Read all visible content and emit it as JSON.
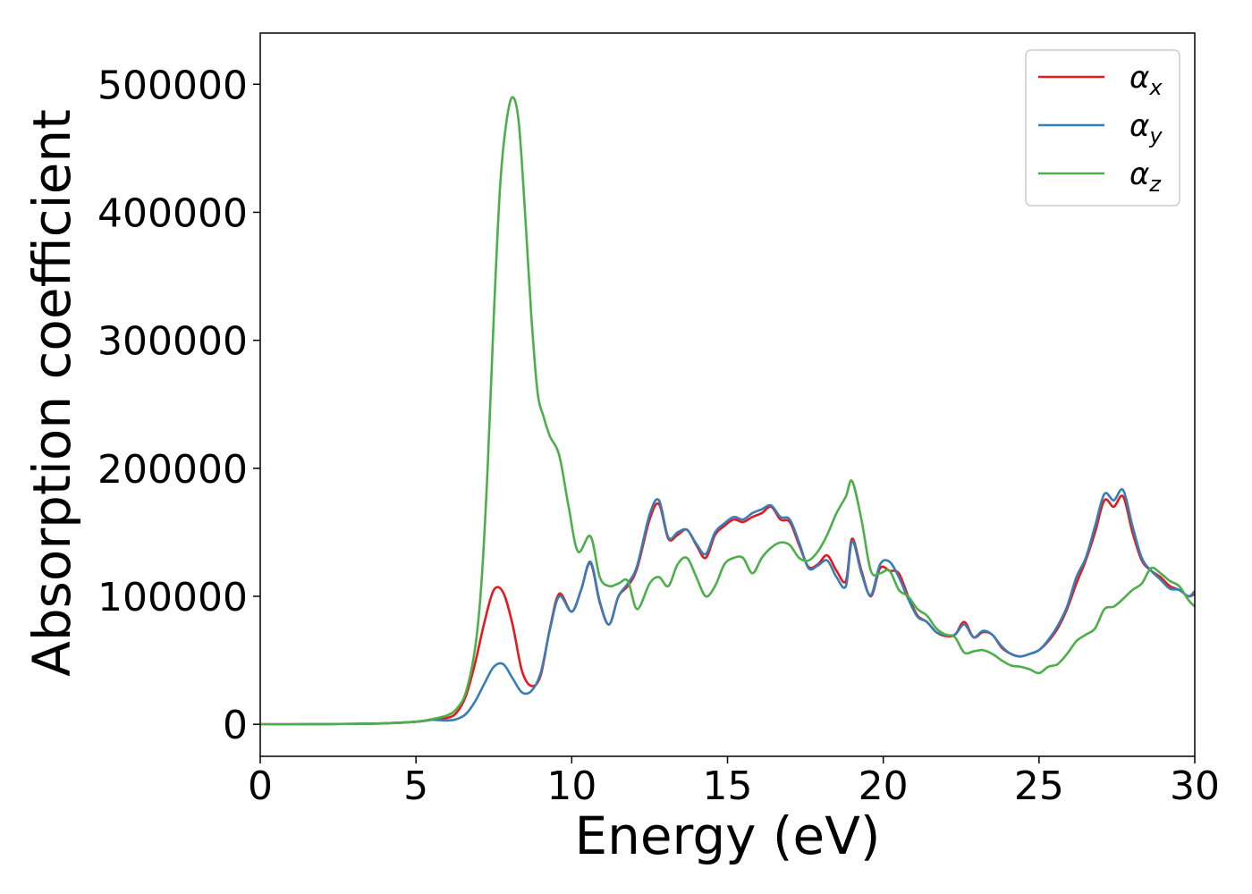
{
  "chart_data": {
    "type": "line",
    "xlabel": "Energy (eV)",
    "ylabel": "Absorption coefficient",
    "xlim": [
      0,
      30
    ],
    "ylim": [
      -25000,
      540000
    ],
    "xticks": [
      0,
      5,
      10,
      15,
      20,
      25,
      30
    ],
    "yticks": [
      0,
      100000,
      200000,
      300000,
      400000,
      500000
    ],
    "grid": false,
    "legend_position": "top-right",
    "series": [
      {
        "name": "α",
        "subscript": "x",
        "color": "#e41a1c",
        "x": [
          0,
          1,
          2,
          3,
          4,
          5,
          5.5,
          6,
          6.3,
          6.6,
          6.9,
          7.2,
          7.5,
          7.8,
          8.1,
          8.4,
          8.7,
          9.0,
          9.3,
          9.6,
          10.0,
          10.3,
          10.6,
          10.9,
          11.2,
          11.5,
          11.8,
          12.1,
          12.5,
          12.8,
          13.1,
          13.4,
          13.7,
          14.0,
          14.3,
          14.6,
          14.9,
          15.2,
          15.5,
          15.8,
          16.1,
          16.4,
          16.7,
          17.0,
          17.3,
          17.6,
          17.9,
          18.2,
          18.5,
          18.8,
          19.0,
          19.3,
          19.6,
          19.9,
          20.2,
          20.5,
          20.8,
          21.1,
          21.4,
          21.7,
          22.0,
          22.3,
          22.6,
          22.9,
          23.2,
          23.5,
          23.8,
          24.1,
          24.4,
          24.7,
          25.0,
          25.3,
          25.6,
          25.9,
          26.2,
          26.5,
          26.8,
          27.1,
          27.4,
          27.7,
          28.0,
          28.3,
          28.6,
          28.9,
          29.2,
          29.5,
          29.8,
          30.0
        ],
        "y": [
          0,
          0,
          200,
          400,
          800,
          2000,
          3500,
          5000,
          9000,
          22000,
          48000,
          80000,
          105000,
          103000,
          78000,
          42000,
          30000,
          38000,
          75000,
          102000,
          88000,
          105000,
          126000,
          95000,
          78000,
          100000,
          108000,
          122000,
          160000,
          172000,
          145000,
          148000,
          152000,
          140000,
          130000,
          148000,
          155000,
          160000,
          158000,
          162000,
          165000,
          170000,
          160000,
          158000,
          140000,
          123000,
          125000,
          132000,
          120000,
          112000,
          145000,
          120000,
          100000,
          122000,
          120000,
          118000,
          100000,
          85000,
          80000,
          72000,
          69000,
          70000,
          80000,
          68000,
          72000,
          70000,
          60000,
          55000,
          53000,
          55000,
          58000,
          65000,
          75000,
          90000,
          110000,
          128000,
          150000,
          175000,
          170000,
          178000,
          150000,
          128000,
          120000,
          115000,
          108000,
          105000,
          100000,
          102000
        ]
      },
      {
        "name": "α",
        "subscript": "y",
        "color": "#377eb8",
        "x": [
          0,
          1,
          2,
          3,
          4,
          5,
          5.5,
          6,
          6.3,
          6.6,
          6.9,
          7.2,
          7.5,
          7.8,
          8.1,
          8.4,
          8.7,
          9.0,
          9.3,
          9.6,
          10.0,
          10.3,
          10.6,
          10.9,
          11.2,
          11.5,
          11.8,
          12.1,
          12.5,
          12.8,
          13.1,
          13.4,
          13.7,
          14.0,
          14.3,
          14.6,
          14.9,
          15.2,
          15.5,
          15.8,
          16.1,
          16.4,
          16.7,
          17.0,
          17.3,
          17.6,
          17.9,
          18.2,
          18.5,
          18.8,
          19.0,
          19.3,
          19.6,
          19.9,
          20.2,
          20.5,
          20.8,
          21.1,
          21.4,
          21.7,
          22.0,
          22.3,
          22.6,
          22.9,
          23.2,
          23.5,
          23.8,
          24.1,
          24.4,
          24.7,
          25.0,
          25.3,
          25.6,
          25.9,
          26.2,
          26.5,
          26.8,
          27.1,
          27.4,
          27.7,
          28.0,
          28.3,
          28.6,
          28.9,
          29.2,
          29.5,
          29.8,
          30.0
        ],
        "y": [
          0,
          0,
          200,
          400,
          800,
          2000,
          3500,
          3000,
          4000,
          8000,
          18000,
          32000,
          45000,
          47000,
          36000,
          25000,
          26000,
          40000,
          74000,
          100000,
          88000,
          105000,
          127000,
          96000,
          78000,
          100000,
          110000,
          124000,
          164000,
          175000,
          146000,
          150000,
          152000,
          141000,
          133000,
          150000,
          157000,
          162000,
          160000,
          165000,
          168000,
          171000,
          162000,
          160000,
          142000,
          122000,
          124000,
          128000,
          115000,
          108000,
          143000,
          118000,
          101000,
          125000,
          127000,
          115000,
          98000,
          84000,
          80000,
          72000,
          70000,
          70000,
          78000,
          68000,
          73000,
          70000,
          61000,
          55000,
          53000,
          55000,
          58000,
          66000,
          77000,
          92000,
          115000,
          130000,
          155000,
          180000,
          175000,
          183000,
          155000,
          130000,
          120000,
          113000,
          106000,
          105000,
          100000,
          104000
        ]
      },
      {
        "name": "α",
        "subscript": "z",
        "color": "#4daf4a",
        "x": [
          0,
          1,
          2,
          3,
          4,
          5,
          5.5,
          6,
          6.3,
          6.6,
          6.9,
          7.1,
          7.3,
          7.5,
          7.7,
          7.9,
          8.1,
          8.3,
          8.5,
          8.7,
          8.9,
          9.1,
          9.3,
          9.6,
          9.9,
          10.2,
          10.6,
          10.9,
          11.2,
          11.5,
          11.8,
          12.1,
          12.5,
          12.8,
          13.1,
          13.4,
          13.7,
          14.0,
          14.3,
          14.6,
          14.9,
          15.2,
          15.5,
          15.8,
          16.1,
          16.4,
          16.7,
          17.0,
          17.3,
          17.6,
          17.9,
          18.2,
          18.5,
          18.8,
          19.0,
          19.3,
          19.6,
          19.9,
          20.2,
          20.5,
          20.8,
          21.1,
          21.4,
          21.7,
          22.0,
          22.3,
          22.6,
          22.9,
          23.2,
          23.5,
          23.8,
          24.1,
          24.4,
          24.7,
          25.0,
          25.3,
          25.6,
          25.9,
          26.2,
          26.5,
          26.8,
          27.1,
          27.4,
          27.7,
          28.0,
          28.3,
          28.6,
          28.9,
          29.2,
          29.5,
          29.8,
          30.0
        ],
        "y": [
          0,
          0,
          200,
          400,
          800,
          2000,
          4000,
          7000,
          12000,
          25000,
          60000,
          110000,
          200000,
          320000,
          420000,
          470000,
          490000,
          470000,
          400000,
          320000,
          260000,
          240000,
          225000,
          210000,
          170000,
          135000,
          147000,
          115000,
          108000,
          110000,
          112000,
          90000,
          110000,
          115000,
          108000,
          125000,
          130000,
          115000,
          100000,
          108000,
          125000,
          130000,
          130000,
          118000,
          130000,
          138000,
          142000,
          140000,
          130000,
          128000,
          135000,
          148000,
          165000,
          178000,
          190000,
          160000,
          120000,
          118000,
          120000,
          105000,
          100000,
          90000,
          85000,
          75000,
          70000,
          68000,
          56000,
          57000,
          58000,
          55000,
          50000,
          46000,
          45000,
          43000,
          40000,
          45000,
          47000,
          55000,
          65000,
          70000,
          75000,
          90000,
          92000,
          98000,
          105000,
          110000,
          122000,
          118000,
          112000,
          108000,
          97000,
          92000
        ]
      }
    ]
  }
}
